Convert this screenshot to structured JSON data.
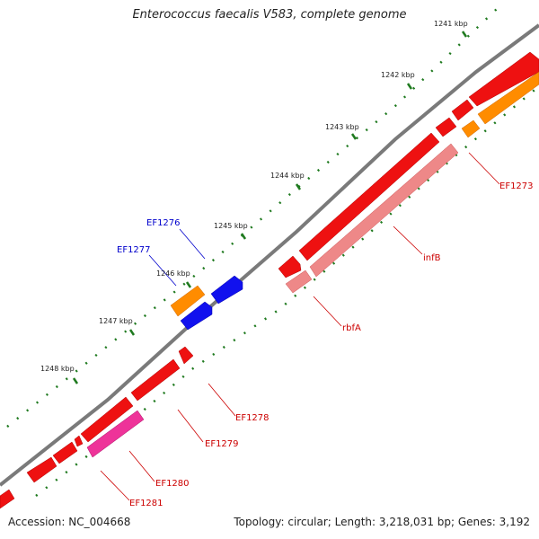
{
  "title": "Enterococcus faecalis V583, complete genome",
  "footer": {
    "accession": "Accession: NC_004668",
    "summary": "Topology: circular; Length: 3,218,031 bp; Genes: 3,192"
  },
  "colors": {
    "backbone": "#7a7a7a",
    "tick": "#1f7a1f",
    "gene_red": "#ee1111",
    "gene_orange": "#ff8c00",
    "gene_blue": "#1111ee",
    "gene_pink": "#ee3399",
    "gene_salmon": "#ee8888",
    "label_red": "#cc0000",
    "label_blue": "#0000cc"
  },
  "scale_labels": [
    {
      "text": "1241 kbp"
    },
    {
      "text": "1242 kbp"
    },
    {
      "text": "1243 kbp"
    },
    {
      "text": "1244 kbp"
    },
    {
      "text": "1245 kbp"
    },
    {
      "text": "1246 kbp"
    },
    {
      "text": "1247 kbp"
    },
    {
      "text": "1248 kbp"
    }
  ],
  "gene_labels": [
    {
      "text": "EF1273",
      "color": "red"
    },
    {
      "text": "infB",
      "color": "red"
    },
    {
      "text": "rbfA",
      "color": "red"
    },
    {
      "text": "EF1276",
      "color": "blue"
    },
    {
      "text": "EF1277",
      "color": "blue"
    },
    {
      "text": "EF1278",
      "color": "red"
    },
    {
      "text": "EF1279",
      "color": "red"
    },
    {
      "text": "EF1280",
      "color": "red"
    },
    {
      "text": "EF1281",
      "color": "red"
    }
  ]
}
